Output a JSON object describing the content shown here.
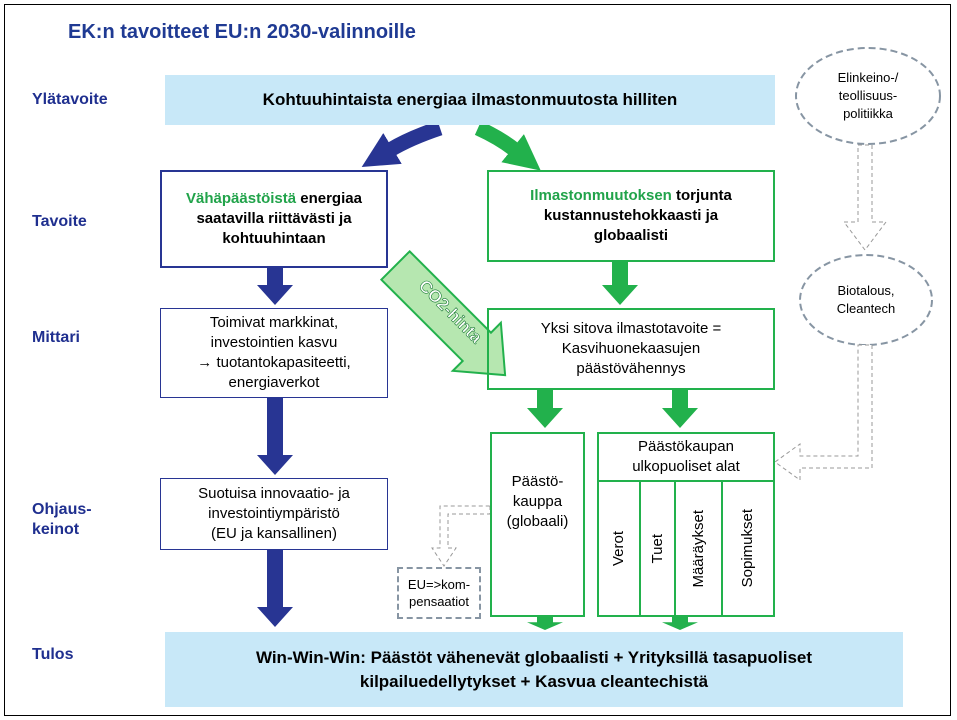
{
  "title": "EK:n tavoitteet EU:n 2030-valinnoille",
  "rows": [
    "Ylätavoite",
    "Tavoite",
    "Mittari",
    "Ohjaus-",
    "keinot",
    "Tulos"
  ],
  "top_goal": "Kohtuuhintaista energiaa ilmastonmuutosta hilliten",
  "side_1": [
    "Elinkeino-/",
    "teollisuus-",
    "politiikka"
  ],
  "side_2": [
    "Biotalous,",
    "Cleantech"
  ],
  "goal_left": {
    "highlight": "Vähäpäästöistä",
    "rest": "energiaa",
    "lines": [
      "saatavilla riittävästi ja",
      "kohtuuhintaan"
    ]
  },
  "goal_right": {
    "highlight": "Ilmastonmuutoksen",
    "rest": "torjunta",
    "lines": [
      "kustannustehokkaasti ja",
      "globaalisti"
    ]
  },
  "co2": "CO2-hinta",
  "metric_left": [
    "Toimivat markkinat,",
    "investointien kasvu",
    "→ tuotantokapasiteetti,",
    "energiaverkot"
  ],
  "metric_right": [
    "Yksi sitova ilmastotavoite =",
    "Kasvihuonekaasujen",
    "päästövähennys"
  ],
  "means_left": [
    "Suotuisa innovaatio- ja",
    "investointiympäristö",
    "(EU ja kansallinen)"
  ],
  "ets": [
    "Päästö-",
    "kauppa",
    "(globaali)"
  ],
  "non_ets": [
    "Päästökaupan",
    "ulkopuoliset alat"
  ],
  "non_ets_tools": [
    "Verot",
    "Tuet",
    "Määräykset",
    "Sopimukset"
  ],
  "compensation": [
    "EU=>kom-",
    "pensaatiot"
  ],
  "result": [
    "Win-Win-Win: Päästöt vähenevät globaalisti +  Yrityksillä tasapuoliset",
    "kilpailuedellytykset + Kasvua cleantechistä"
  ]
}
